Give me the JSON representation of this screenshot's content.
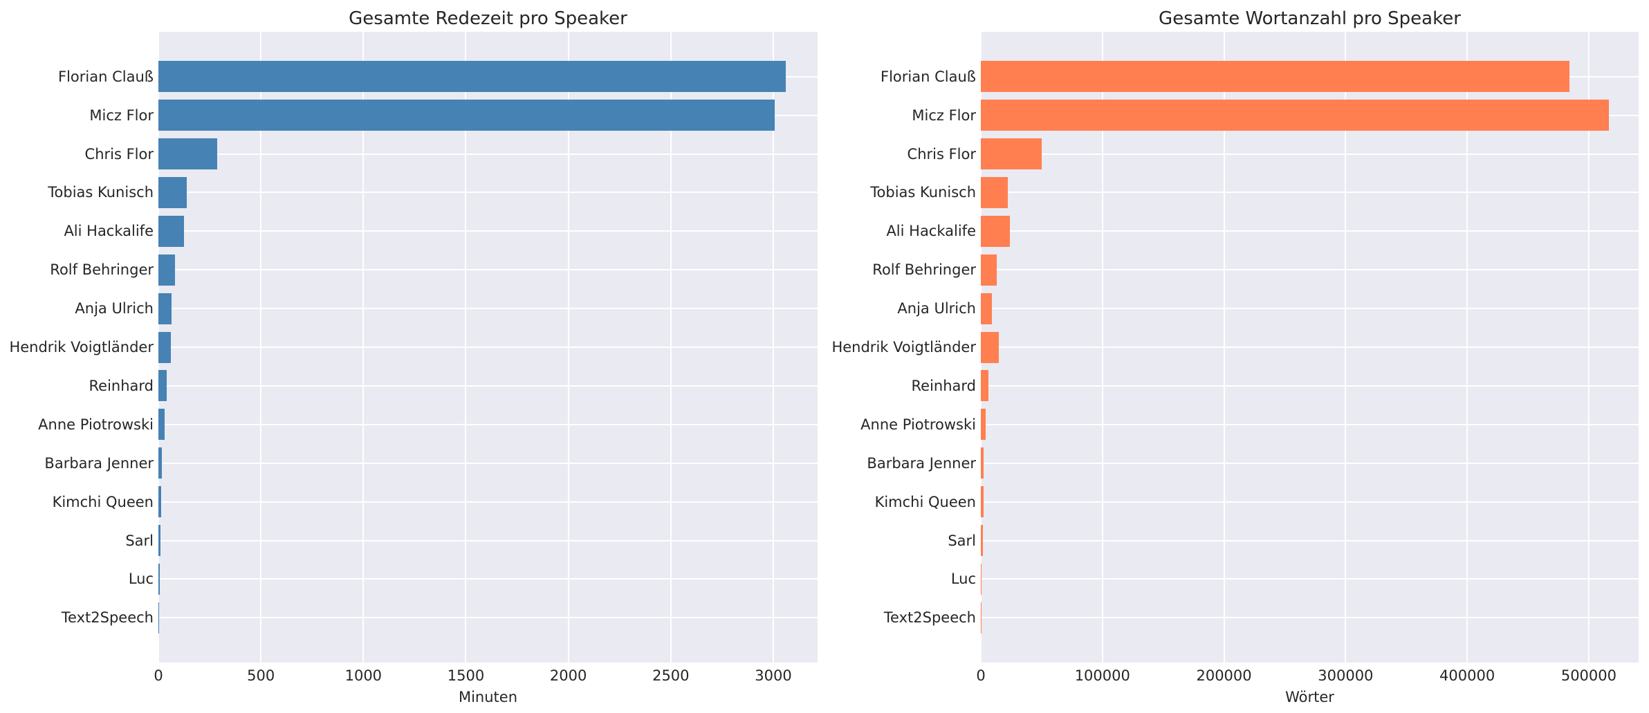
{
  "figure": {
    "background": "#ffffff",
    "plot_background": "#eaeaf2",
    "grid_color": "#ffffff",
    "text_color": "#262626"
  },
  "chart_data": [
    {
      "type": "bar",
      "orientation": "horizontal",
      "title": "Gesamte Redezeit pro Speaker",
      "xlabel": "Minuten",
      "ylabel": "",
      "bar_color": "#4682b4",
      "grid": true,
      "legend": "none",
      "xlim": [
        0,
        3216
      ],
      "xticks": [
        0,
        500,
        1000,
        1500,
        2000,
        2500,
        3000
      ],
      "xtick_labels": [
        "0",
        "500",
        "1000",
        "1500",
        "2000",
        "2500",
        "3000"
      ],
      "categories": [
        "Florian Clauß",
        "Micz Flor",
        "Chris Flor",
        "Tobias Kunisch",
        "Ali Hackalife",
        "Rolf Behringer",
        "Anja Ulrich",
        "Hendrik Voigtländer",
        "Reinhard",
        "Anne Piotrowski",
        "Barbara Jenner",
        "Kimchi Queen",
        "Sarl",
        "Luc",
        "Text2Speech"
      ],
      "values": [
        3061,
        3007,
        288,
        140,
        124,
        82,
        65,
        62,
        41,
        30,
        16,
        13,
        11,
        6,
        5
      ]
    },
    {
      "type": "bar",
      "orientation": "horizontal",
      "title": "Gesamte Wortanzahl pro Speaker",
      "xlabel": "Wörter",
      "ylabel": "",
      "bar_color": "#ff7f50",
      "grid": true,
      "legend": "none",
      "xlim": [
        0,
        541000
      ],
      "xticks": [
        0,
        100000,
        200000,
        300000,
        400000,
        500000
      ],
      "xtick_labels": [
        "0",
        "100000",
        "200000",
        "300000",
        "400000",
        "500000"
      ],
      "categories": [
        "Florian Clauß",
        "Micz Flor",
        "Chris Flor",
        "Tobias Kunisch",
        "Ali Hackalife",
        "Rolf Behringer",
        "Anja Ulrich",
        "Hendrik Voigtländer",
        "Reinhard",
        "Anne Piotrowski",
        "Barbara Jenner",
        "Kimchi Queen",
        "Sarl",
        "Luc",
        "Text2Speech"
      ],
      "values": [
        484000,
        516300,
        50200,
        22400,
        24100,
        13300,
        8900,
        14600,
        6100,
        3800,
        2400,
        2100,
        1900,
        700,
        600
      ]
    }
  ]
}
